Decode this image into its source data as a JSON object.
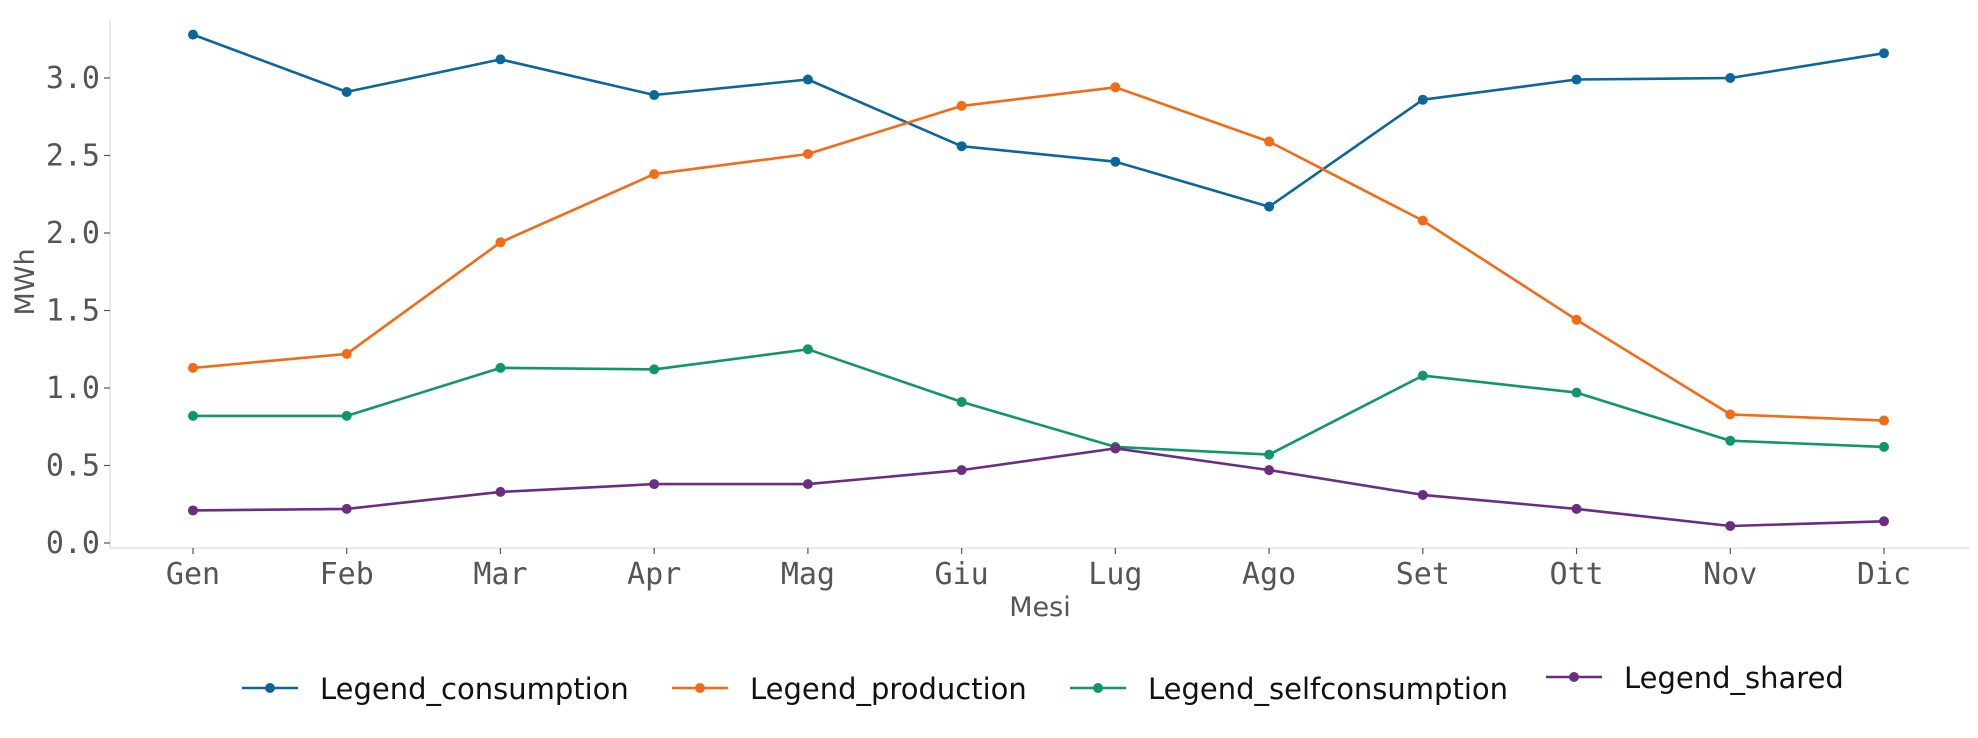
{
  "chart_data": {
    "type": "line",
    "categories": [
      "Gen",
      "Feb",
      "Mar",
      "Apr",
      "Mag",
      "Giu",
      "Lug",
      "Ago",
      "Set",
      "Ott",
      "Nov",
      "Dic"
    ],
    "xlabel": "Mesi",
    "ylabel": "MWh",
    "ylim": [
      0.0,
      3.3
    ],
    "yticks": [
      "0.0",
      "0.5",
      "1.0",
      "1.5",
      "2.0",
      "2.5",
      "3.0"
    ],
    "grid": false,
    "legend_position": "bottom",
    "series": [
      {
        "name": "Legend_consumption",
        "color": "#0b6699",
        "values": [
          3.28,
          2.91,
          3.12,
          2.89,
          2.99,
          2.56,
          2.46,
          2.17,
          2.86,
          2.99,
          3.0,
          3.16
        ]
      },
      {
        "name": "Legend_production",
        "color": "#f26b16",
        "values": [
          1.13,
          1.22,
          1.94,
          2.38,
          2.51,
          2.82,
          2.94,
          2.59,
          2.08,
          1.44,
          0.83,
          0.79
        ]
      },
      {
        "name": "Legend_selfconsumption",
        "color": "#10966b",
        "values": [
          0.82,
          0.82,
          1.13,
          1.12,
          1.25,
          0.91,
          0.62,
          0.57,
          1.08,
          0.97,
          0.66,
          0.62
        ]
      },
      {
        "name": "Legend_shared",
        "color": "#6a2d81",
        "values": [
          0.21,
          0.22,
          0.33,
          0.38,
          0.38,
          0.47,
          0.61,
          0.47,
          0.31,
          0.22,
          0.11,
          0.14
        ]
      }
    ]
  }
}
